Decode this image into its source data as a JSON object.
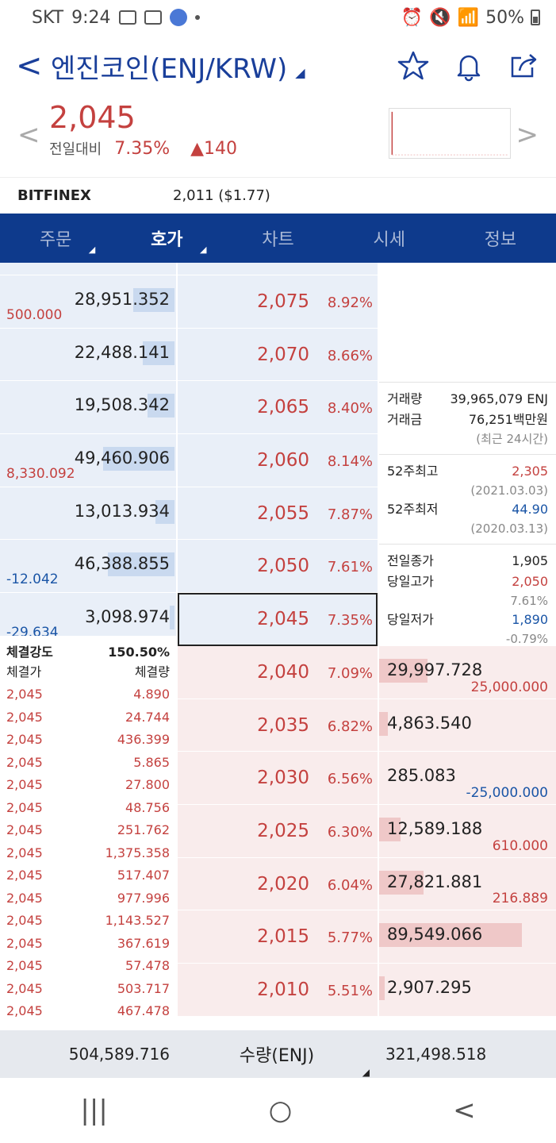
{
  "status_bar": {
    "carrier": "SKT",
    "time": "9:24",
    "battery": "50%"
  },
  "header": {
    "back": "<",
    "title": "엔진코인(ENJ/KRW)",
    "title_caret": "◢"
  },
  "price": {
    "current": "2,045",
    "change_label": "전일대비",
    "change_pct": "7.35%",
    "change_amt": "▲140",
    "prev_arrow": "<",
    "next_arrow": ">"
  },
  "reference": {
    "exchange": "BITFINEX",
    "value": "2,011 ($1.77)"
  },
  "tabs": [
    {
      "label": "주문"
    },
    {
      "label": "호가"
    },
    {
      "label": "차트"
    },
    {
      "label": "시세"
    },
    {
      "label": "정보"
    }
  ],
  "asks": [
    {
      "qty": "28,951.352",
      "note": "500.000",
      "note_color": "red",
      "price": "2,075",
      "pct": "8.92%",
      "bar": 0.26
    },
    {
      "qty": "22,488.141",
      "note": "",
      "note_color": "red",
      "price": "2,070",
      "pct": "8.66%",
      "bar": 0.2
    },
    {
      "qty": "19,508.342",
      "note": "",
      "note_color": "red",
      "price": "2,065",
      "pct": "8.40%",
      "bar": 0.17
    },
    {
      "qty": "49,460.906",
      "note": "8,330.092",
      "note_color": "red",
      "price": "2,060",
      "pct": "8.14%",
      "bar": 0.45
    },
    {
      "qty": "13,013.934",
      "note": "",
      "note_color": "red",
      "price": "2,055",
      "pct": "7.87%",
      "bar": 0.12
    },
    {
      "qty": "46,388.855",
      "note": "-12.042",
      "note_color": "blue",
      "price": "2,050",
      "pct": "7.61%",
      "bar": 0.42
    },
    {
      "qty": "3,098.974",
      "note": "-29.634",
      "note_color": "blue",
      "price": "2,045",
      "pct": "7.35%",
      "bar": 0.03
    }
  ],
  "bids": [
    {
      "qty": "29,997.728",
      "note": "25,000.000",
      "note_color": "red",
      "price": "2,040",
      "pct": "7.09%",
      "bar": 0.27
    },
    {
      "qty": "4,863.540",
      "note": "",
      "note_color": "red",
      "price": "2,035",
      "pct": "6.82%",
      "bar": 0.05
    },
    {
      "qty": "285.083",
      "note": "-25,000.000",
      "note_color": "blue",
      "price": "2,030",
      "pct": "6.56%",
      "bar": 0.0
    },
    {
      "qty": "12,589.188",
      "note": "610.000",
      "note_color": "red",
      "price": "2,025",
      "pct": "6.30%",
      "bar": 0.12
    },
    {
      "qty": "27,821.881",
      "note": "216.889",
      "note_color": "red",
      "price": "2,020",
      "pct": "6.04%",
      "bar": 0.25
    },
    {
      "qty": "89,549.066",
      "note": "",
      "note_color": "red",
      "price": "2,015",
      "pct": "5.77%",
      "bar": 0.8
    },
    {
      "qty": "2,907.295",
      "note": "",
      "note_color": "red",
      "price": "2,010",
      "pct": "5.51%",
      "bar": 0.03
    }
  ],
  "info": {
    "volume_label": "거래량",
    "volume": "39,965,079 ENJ",
    "amount_label": "거래금",
    "amount": "76,251백만원",
    "period": "(최근 24시간)",
    "high52_label": "52주최고",
    "high52": "2,305",
    "high52_date": "(2021.03.03)",
    "low52_label": "52주최저",
    "low52": "44.90",
    "low52_date": "(2020.03.13)",
    "prev_close_label": "전일종가",
    "prev_close": "1,905",
    "day_high_label": "당일고가",
    "day_high": "2,050",
    "day_high_pct": "7.61%",
    "day_low_label": "당일저가",
    "day_low": "1,890",
    "day_low_pct": "-0.79%"
  },
  "trades": {
    "strength_label": "체결강도",
    "strength": "150.50%",
    "price_label": "체결가",
    "qty_label": "체결량",
    "rows": [
      {
        "price": "2,045",
        "qty": "4.890"
      },
      {
        "price": "2,045",
        "qty": "24.744"
      },
      {
        "price": "2,045",
        "qty": "436.399"
      },
      {
        "price": "2,045",
        "qty": "5.865"
      },
      {
        "price": "2,045",
        "qty": "27.800"
      },
      {
        "price": "2,045",
        "qty": "48.756"
      },
      {
        "price": "2,045",
        "qty": "251.762"
      },
      {
        "price": "2,045",
        "qty": "1,375.358"
      },
      {
        "price": "2,045",
        "qty": "517.407"
      },
      {
        "price": "2,045",
        "qty": "977.996"
      },
      {
        "price": "2,045",
        "qty": "1,143.527"
      },
      {
        "price": "2,045",
        "qty": "367.619"
      },
      {
        "price": "2,045",
        "qty": "57.478"
      },
      {
        "price": "2,045",
        "qty": "503.717"
      },
      {
        "price": "2,045",
        "qty": "467.478"
      }
    ]
  },
  "footer": {
    "ask_total": "504,589.716",
    "unit_label": "수량(ENJ)",
    "bid_total": "321,498.518"
  },
  "android_nav": {
    "recent": "|||",
    "home": "○",
    "back": "<"
  }
}
